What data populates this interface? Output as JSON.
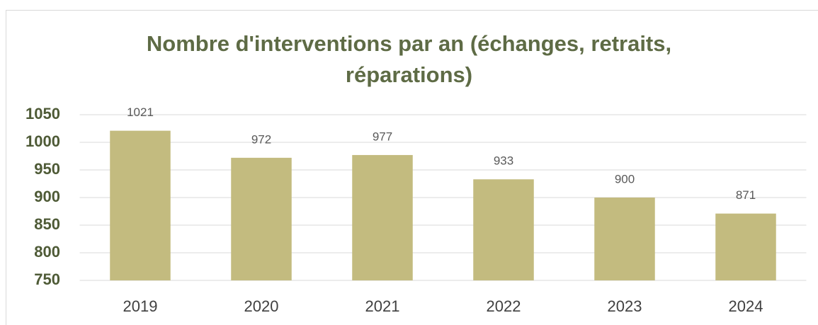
{
  "chart_data": {
    "type": "bar",
    "title": "Nombre d'interventions par an (échanges, retraits, réparations)",
    "categories": [
      "2019",
      "2020",
      "2021",
      "2022",
      "2023",
      "2024"
    ],
    "values": [
      1021,
      972,
      977,
      933,
      900,
      871
    ],
    "color": "#c3bb7f",
    "ylim": [
      750,
      1050
    ],
    "yticks": [
      750,
      800,
      850,
      900,
      950,
      1000,
      1050
    ],
    "grid": true
  }
}
